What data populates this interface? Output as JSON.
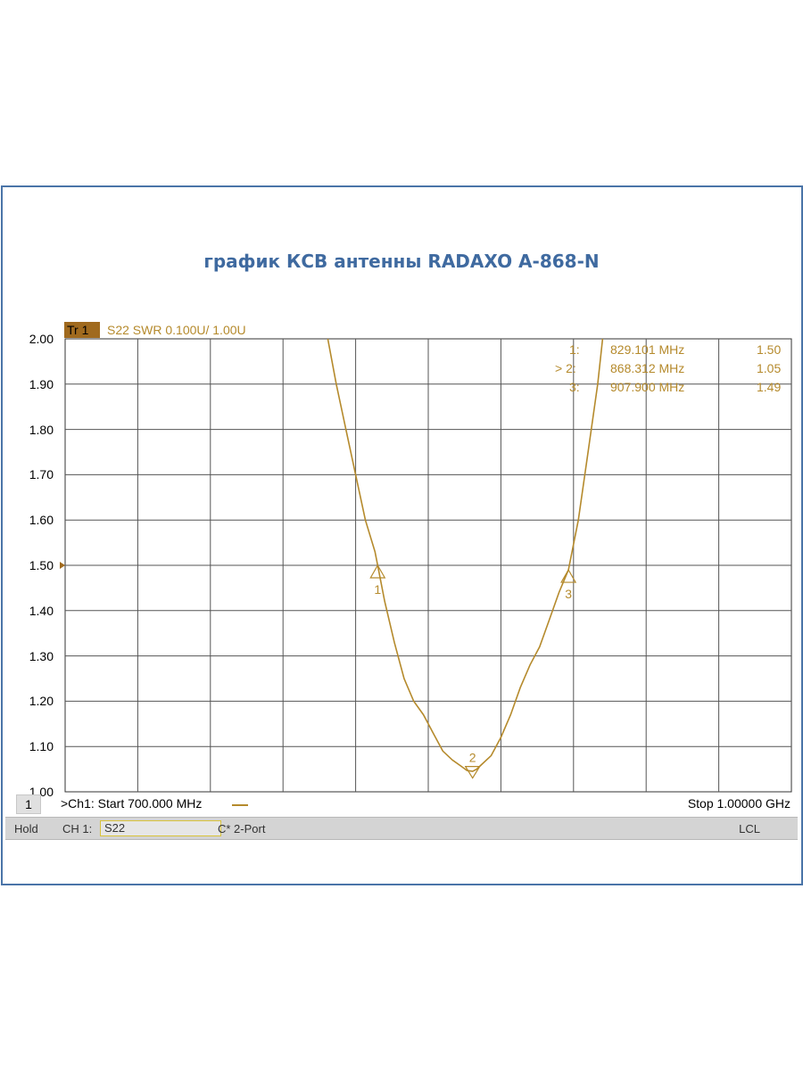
{
  "title": "график КСВ антенны RADAXO A-868-N",
  "trace": {
    "badge": "Tr 1",
    "label": "S22 SWR 0.100U/  1.00U"
  },
  "colors": {
    "trace": "#b58a2c",
    "grid": "#555555",
    "frame": "#4a74a8",
    "title": "#3f6aa0"
  },
  "markers": [
    {
      "num": "1:",
      "freq": "829.101 MHz",
      "value": "1.50"
    },
    {
      "num": "> 2:",
      "freq": "868.312 MHz",
      "value": "1.05"
    },
    {
      "num": "3:",
      "freq": "907.900 MHz",
      "value": "1.49"
    }
  ],
  "status": {
    "channel": "1",
    "start": ">Ch1: Start  700.000 MHz",
    "stop": "Stop  1.00000 GHz"
  },
  "bottom": {
    "hold": "Hold",
    "ch": "CH 1:",
    "param": "S22",
    "cal": "C* 2-Port",
    "lcl": "LCL"
  },
  "chart_data": {
    "type": "line",
    "title": "график КСВ антенны RADAXO A-868-N",
    "xlabel": "",
    "ylabel": "",
    "xlim": [
      700,
      1000
    ],
    "ylim": [
      1.0,
      2.0
    ],
    "y_ticks": [
      "2.00",
      "1.90",
      "1.80",
      "1.70",
      "1.60",
      "1.50",
      "1.40",
      "1.30",
      "1.20",
      "1.10",
      "1.00"
    ],
    "grid": true,
    "series": [
      {
        "name": "S22 SWR",
        "x": [
          808.5,
          812,
          816,
          820,
          824,
          828,
          829.1,
          832,
          836,
          840,
          844,
          848,
          852,
          856,
          860,
          864,
          866,
          868.3,
          870,
          872,
          876,
          880,
          884,
          888,
          892,
          896,
          900,
          904,
          907.9,
          912,
          916,
          920,
          922
        ],
        "y": [
          2.0,
          1.9,
          1.8,
          1.7,
          1.6,
          1.53,
          1.5,
          1.42,
          1.33,
          1.25,
          1.2,
          1.17,
          1.13,
          1.09,
          1.07,
          1.055,
          1.047,
          1.045,
          1.05,
          1.06,
          1.08,
          1.12,
          1.17,
          1.23,
          1.28,
          1.32,
          1.38,
          1.44,
          1.49,
          1.6,
          1.75,
          1.9,
          2.0
        ]
      }
    ],
    "markers": [
      {
        "label": "1",
        "x": 829.101,
        "y": 1.5
      },
      {
        "label": "2",
        "x": 868.312,
        "y": 1.05
      },
      {
        "label": "3",
        "x": 907.9,
        "y": 1.49
      }
    ]
  }
}
